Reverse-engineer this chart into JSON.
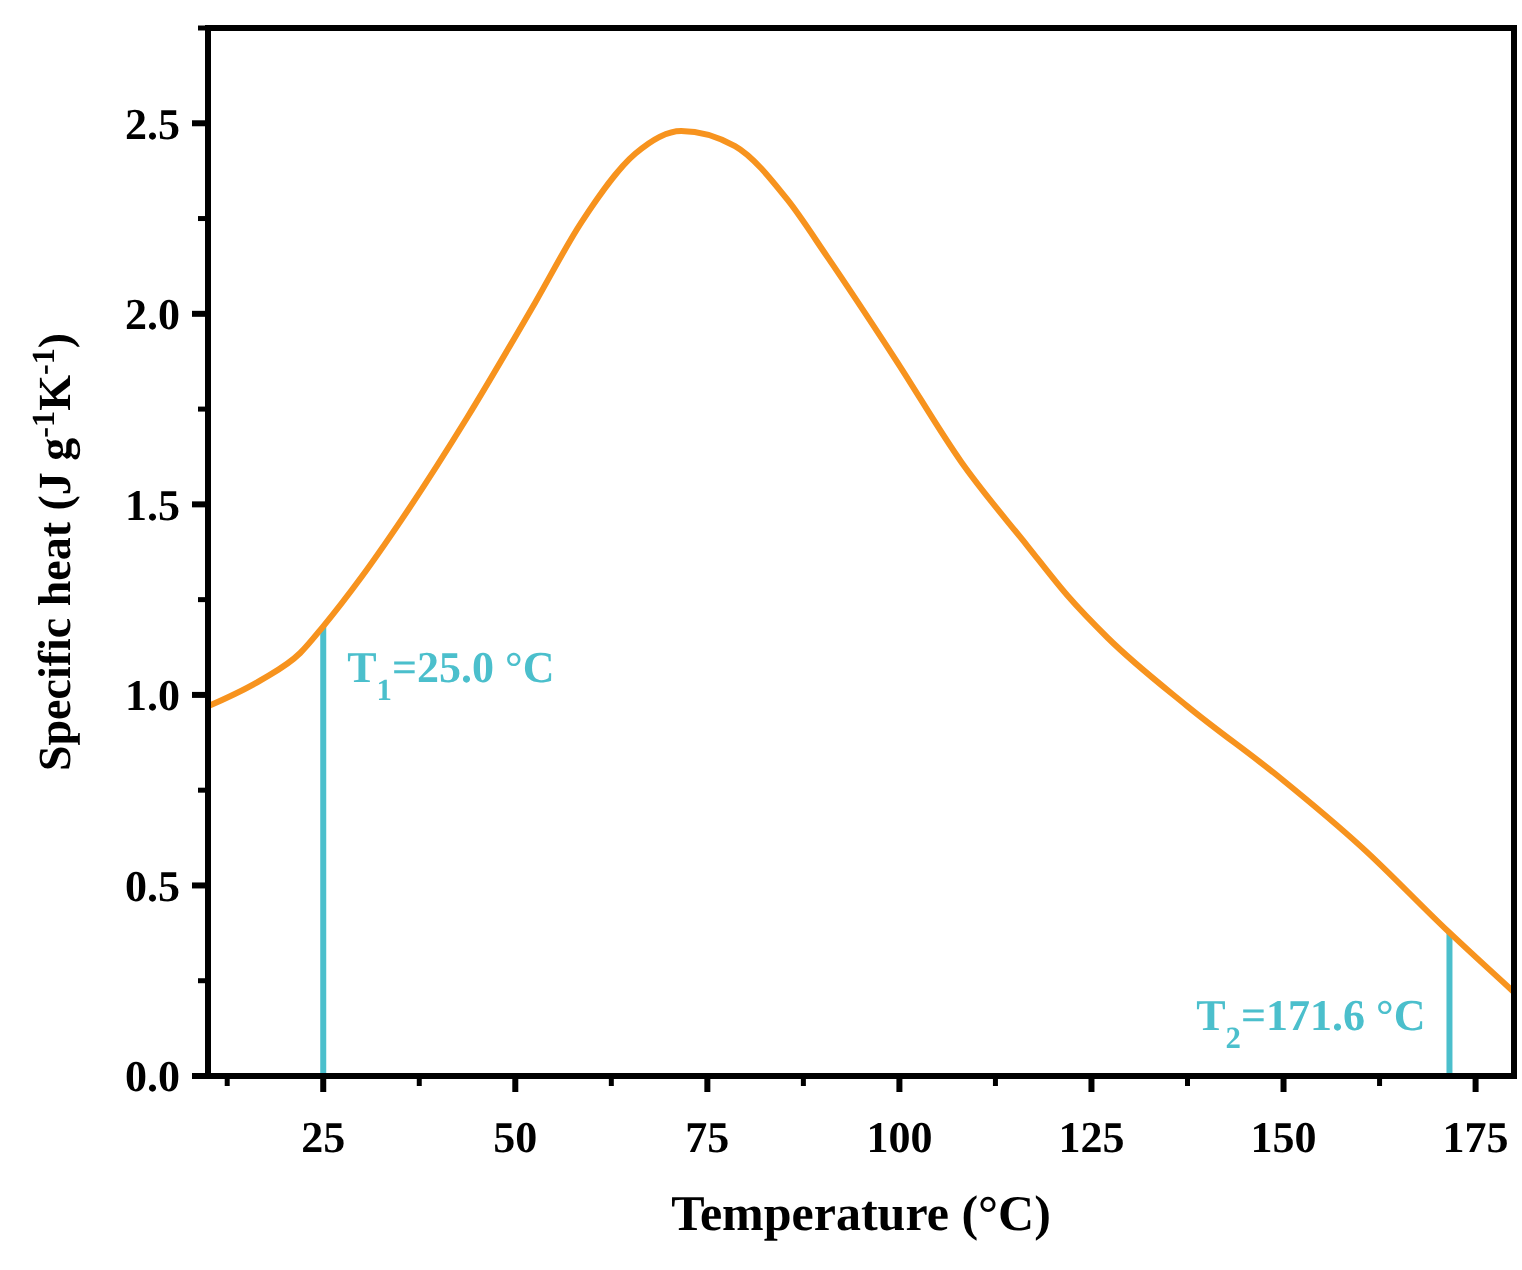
{
  "chart_data": {
    "type": "line",
    "xlabel": "Temperature (°C)",
    "ylabel": "Specific heat (J g$^{-1}$K$^{-1}$)",
    "xlim": [
      10,
      180
    ],
    "ylim": [
      0,
      2.75
    ],
    "xticks": [
      25,
      50,
      75,
      100,
      125,
      150,
      175
    ],
    "yticks": [
      {
        "value": 0,
        "label": "0.0"
      },
      0.5,
      {
        "value": 1,
        "label": "1.0"
      },
      1.5,
      {
        "value": 2,
        "label": "2.0"
      },
      2.5
    ],
    "grid": false,
    "marker": "none",
    "line_style": "solid",
    "series": [
      {
        "color": "#f7931e",
        "x": [
          10,
          17,
          22,
          25,
          30,
          35.2,
          43.8,
          52.6,
          58.6,
          65.6,
          71.6,
          78.6,
          85.4,
          90.6,
          99.5,
          108.1,
          116.7,
          121.9,
          127.1,
          137.5,
          149.7,
          160.2,
          171.4,
          180
        ],
        "values": [
          0.97,
          1.04,
          1.11,
          1.18,
          1.31,
          1.46,
          1.73,
          2.03,
          2.24,
          2.42,
          2.48,
          2.44,
          2.3,
          2.15,
          1.88,
          1.61,
          1.39,
          1.26,
          1.15,
          0.97,
          0.78,
          0.6,
          0.38,
          0.22
        ]
      }
    ],
    "ref_lines": [
      {
        "axis": "x",
        "value": 25,
        "label": "T$_{1}$=25.0 °C",
        "color": "#4bbfcc",
        "line_style": "solid"
      },
      {
        "axis": "x",
        "value": 171.6,
        "label": "T$_{2}$=171.6 °C",
        "color": "#4bbfcc",
        "line_style": "solid"
      }
    ]
  }
}
